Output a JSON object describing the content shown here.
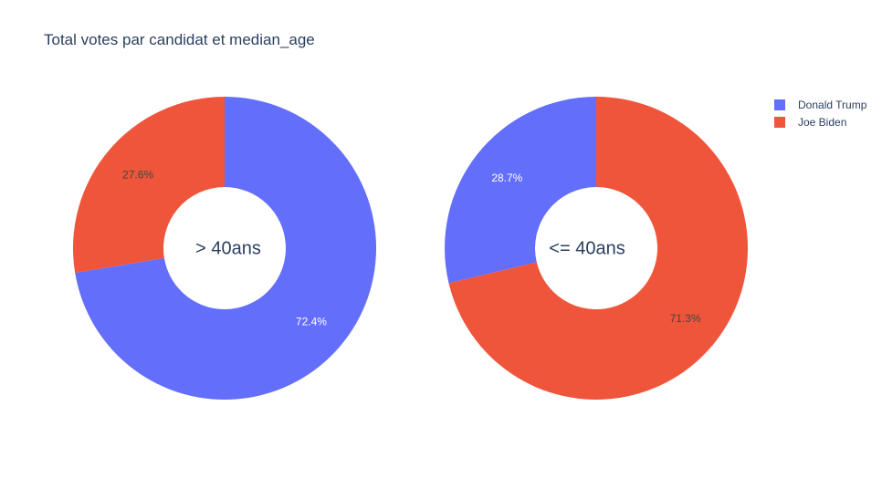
{
  "chart_data": {
    "type": "pie",
    "title": "Total votes par candidat et median_age",
    "legend": {
      "placement": "top-right",
      "entries": [
        {
          "name": "Donald Trump",
          "color": "#636efa"
        },
        {
          "name": "Joe Biden",
          "color": "#ef553b"
        }
      ]
    },
    "charts": [
      {
        "center_label": "> 40ans",
        "slices": [
          {
            "name": "Donald Trump",
            "percent": 72.4,
            "label": "72.4%",
            "color": "#636efa"
          },
          {
            "name": "Joe Biden",
            "percent": 27.6,
            "label": "27.6%",
            "color": "#ef553b"
          }
        ]
      },
      {
        "center_label": "<= 40ans",
        "slices": [
          {
            "name": "Joe Biden",
            "percent": 71.3,
            "label": "71.3%",
            "color": "#ef553b"
          },
          {
            "name": "Donald Trump",
            "percent": 28.7,
            "label": "28.7%",
            "color": "#636efa"
          }
        ]
      }
    ]
  }
}
